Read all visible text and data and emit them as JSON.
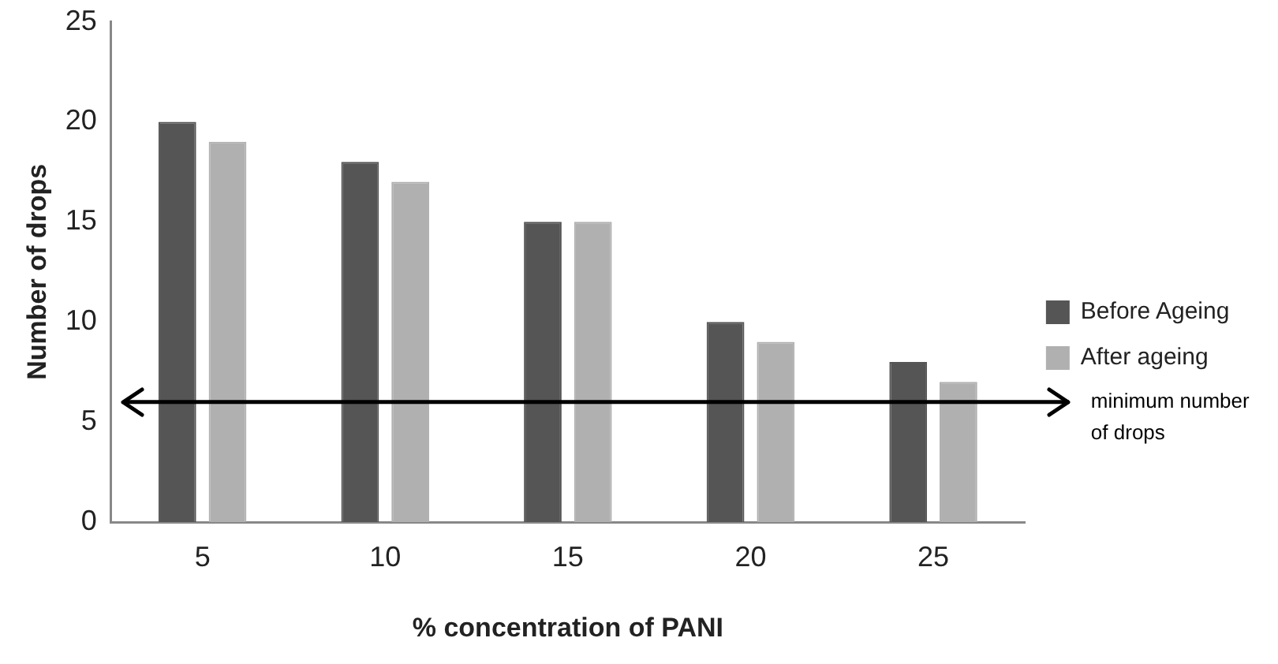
{
  "chart_data": {
    "type": "bar",
    "xlabel": "% concentration of PANI",
    "ylabel": "Number of drops",
    "categories": [
      "5",
      "10",
      "15",
      "20",
      "25"
    ],
    "series": [
      {
        "name": "Before Ageing",
        "color": "#555555",
        "values": [
          20,
          18,
          15,
          10,
          8
        ]
      },
      {
        "name": "After ageing",
        "color": "#b0b0b0",
        "values": [
          19,
          17,
          15,
          9,
          7
        ]
      }
    ],
    "ylim": [
      0,
      25
    ],
    "yticks": [
      0,
      5,
      10,
      15,
      20,
      25
    ],
    "grid": false,
    "legend": "right",
    "ref_lines": [
      {
        "axis": "y",
        "value": 6,
        "label": "minimum number of drops",
        "color": "#000000"
      }
    ]
  }
}
